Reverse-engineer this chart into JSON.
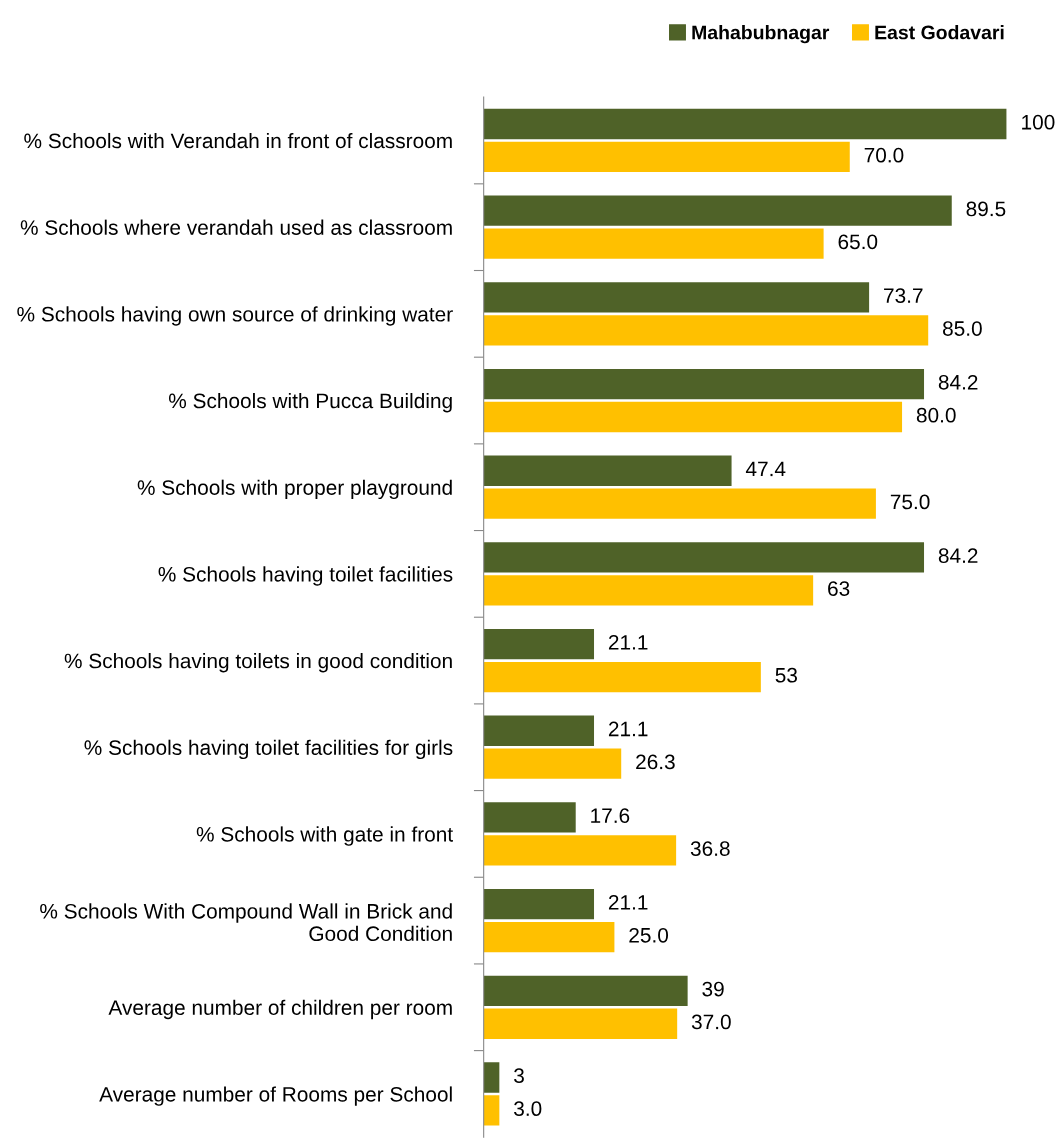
{
  "chart_data": {
    "type": "bar",
    "orientation": "horizontal",
    "categories": [
      "% Schools with Verandah in front of classroom",
      "% Schools where verandah used as classroom",
      "% Schools having own source of drinking water",
      "% Schools with Pucca Building",
      "% Schools with proper playground",
      "% Schools having toilet facilities",
      "% Schools having toilets in good condition",
      "% Schools having toilet facilities for girls",
      "% Schools with gate in front",
      "% Schools With Compound Wall in Brick and Good Condition",
      "Average number of children per room",
      "Average number of Rooms per School"
    ],
    "series": [
      {
        "name": "Mahabubnagar",
        "color": "#4f6228",
        "values": [
          100,
          89.5,
          73.7,
          84.2,
          47.4,
          84.2,
          21.1,
          21.1,
          17.6,
          21.1,
          39,
          3
        ],
        "value_labels": [
          "100",
          "89.5",
          "73.7",
          "84.2",
          "47.4",
          "84.2",
          "21.1",
          "21.1",
          "17.6",
          "21.1",
          "39",
          "3"
        ]
      },
      {
        "name": "East Godavari",
        "color": "#ffc000",
        "values": [
          70.0,
          65.0,
          85.0,
          80.0,
          75.0,
          63,
          53,
          26.3,
          36.8,
          25.0,
          37.0,
          3.0
        ],
        "value_labels": [
          "70.0",
          "65.0",
          "85.0",
          "80.0",
          "75.0",
          "63",
          "53",
          "26.3",
          "36.8",
          "25.0",
          "37.0",
          "3.0"
        ]
      }
    ],
    "xlim": [
      0,
      100
    ],
    "tick_labels": "y",
    "grid": false,
    "legend": "top right"
  }
}
